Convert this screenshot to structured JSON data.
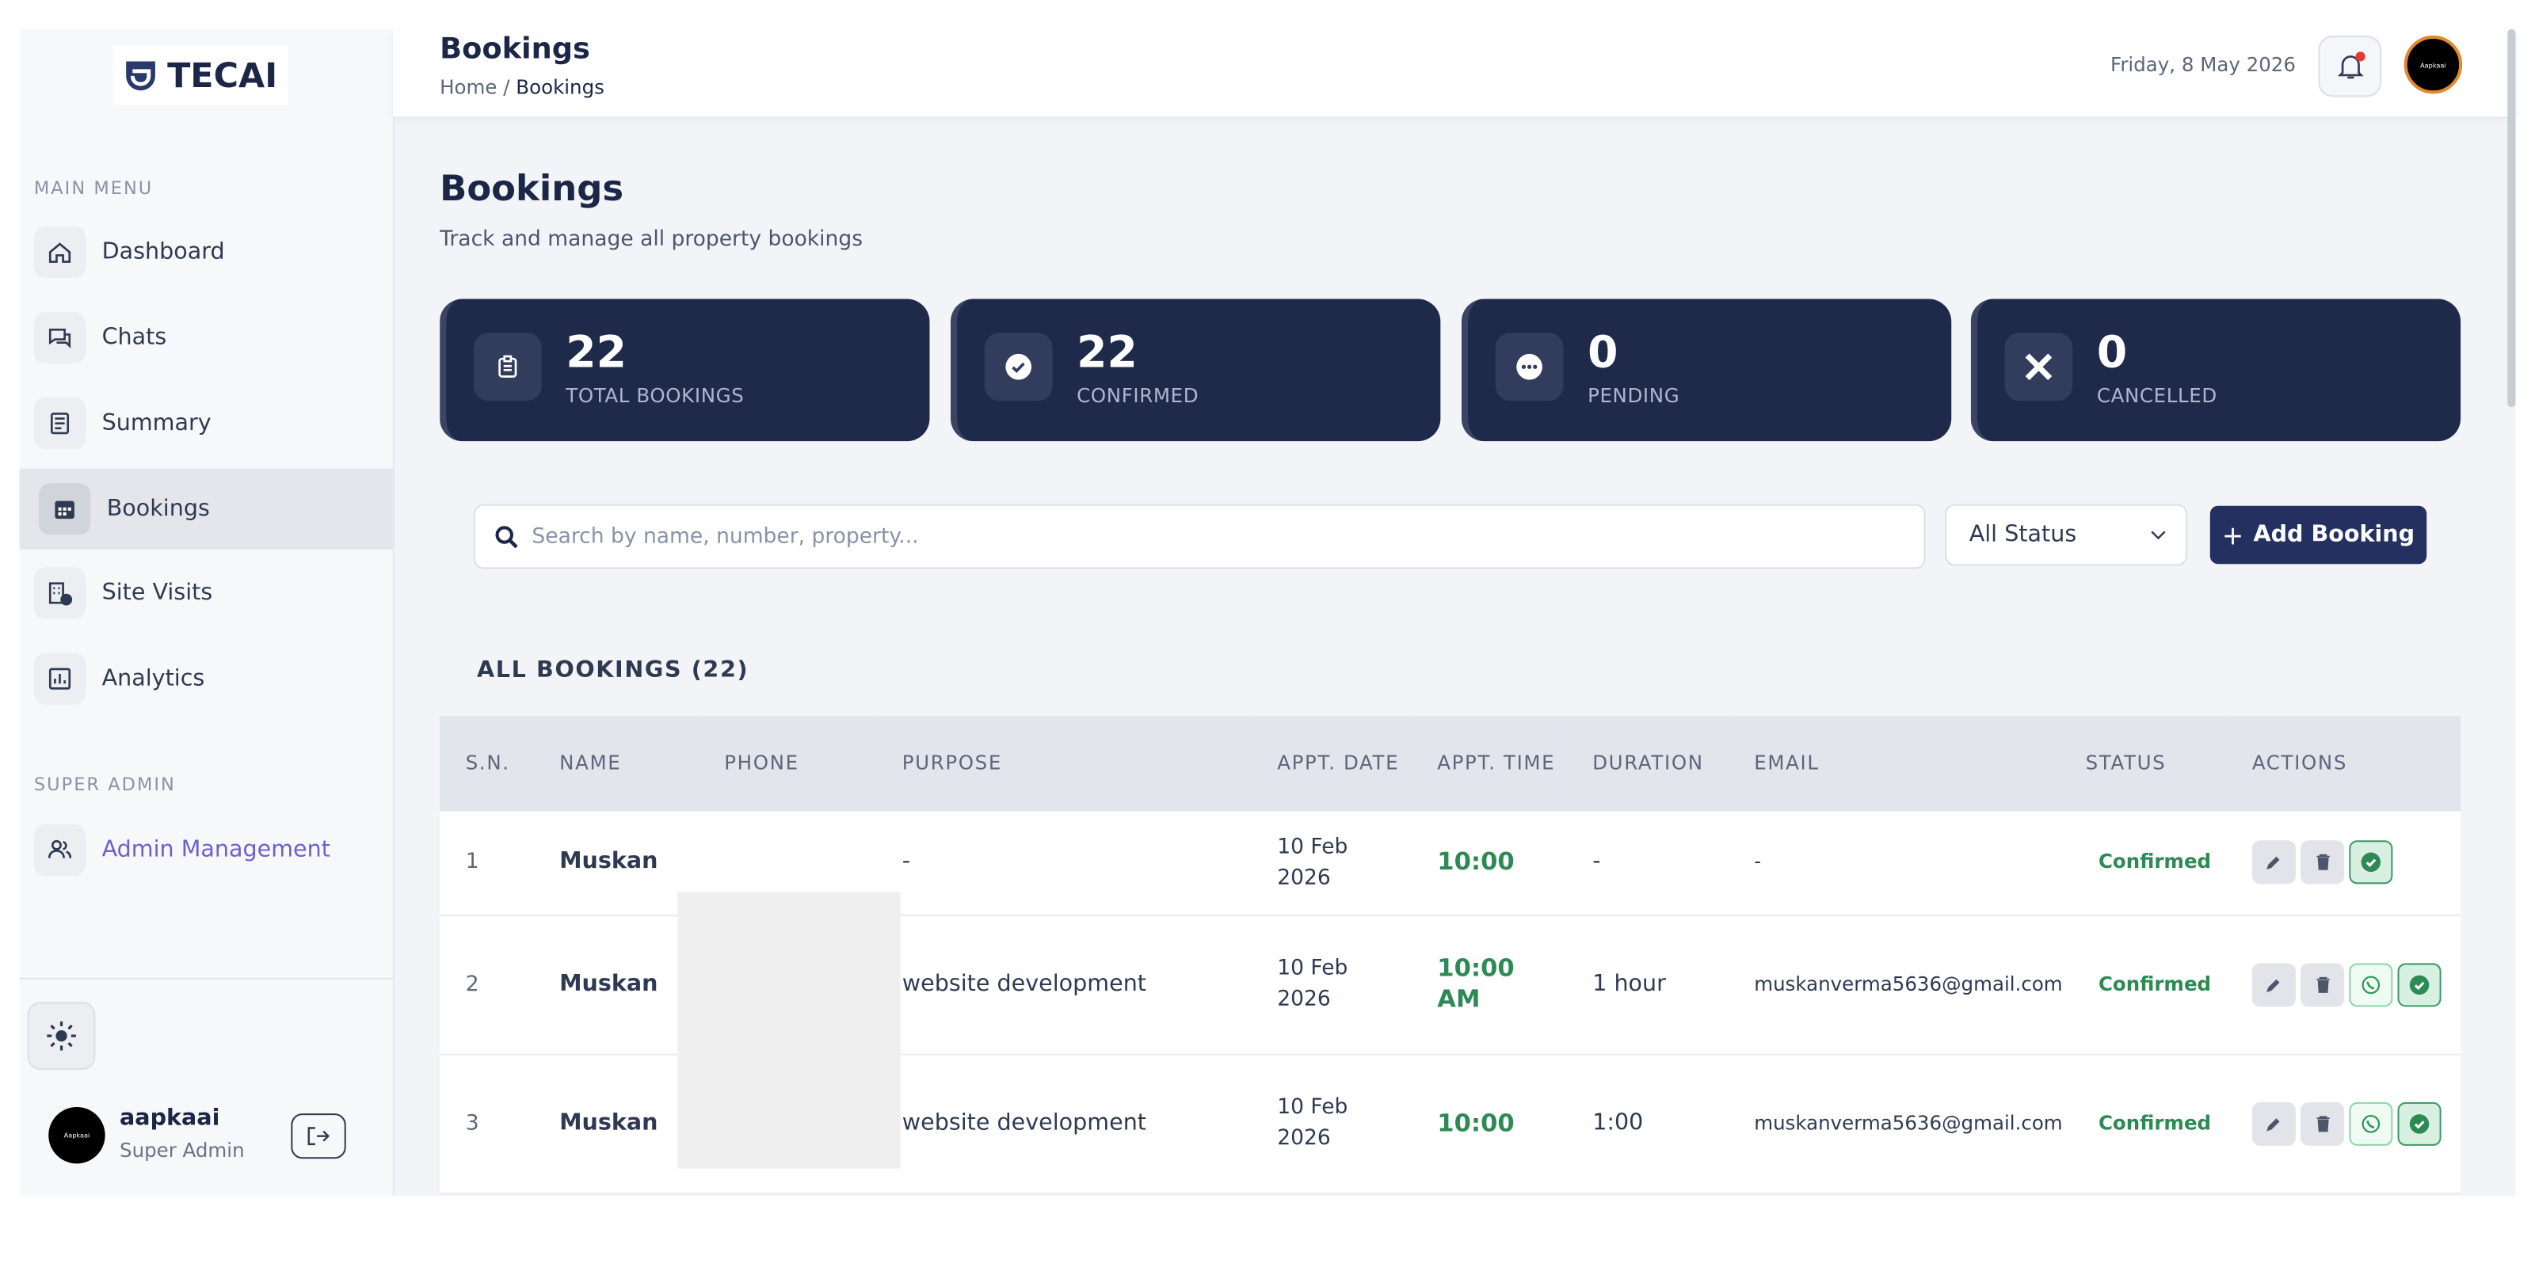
{
  "brand": "TECAI",
  "header": {
    "title": "Bookings",
    "breadcrumb": {
      "home": "Home",
      "separator": "/",
      "current": "Bookings"
    },
    "date": "Friday, 8 May 2026",
    "avatar": "Aapkaai"
  },
  "sidebar": {
    "main_menu_label": "MAIN MENU",
    "items": [
      "Dashboard",
      "Chats",
      "Summary",
      "Bookings",
      "Site Visits",
      "Analytics"
    ],
    "active": 3,
    "super_admin_label": "SUPER ADMIN",
    "admin_item": "Admin Management",
    "user": {
      "avatar": "Aapkaai",
      "name": "aapkaai",
      "role": "Super Admin"
    }
  },
  "page": {
    "title": "Bookings",
    "subtitle": "Track and manage all property bookings"
  },
  "stats": [
    {
      "value": 22,
      "label": "TOTAL BOOKINGS"
    },
    {
      "value": 22,
      "label": "CONFIRMED"
    },
    {
      "value": 0,
      "label": "PENDING"
    },
    {
      "value": 0,
      "label": "CANCELLED"
    }
  ],
  "toolbar": {
    "search_placeholder": "Search by name, number, property...",
    "status_filter": "All Status",
    "add_button": "Add Booking"
  },
  "table": {
    "title": "ALL BOOKINGS (22)",
    "columns": [
      "S.N.",
      "NAME",
      "PHONE",
      "PURPOSE",
      "APPT. DATE",
      "APPT. TIME",
      "DURATION",
      "EMAIL",
      "STATUS",
      "ACTIONS"
    ],
    "rows": [
      {
        "sn": 1,
        "name": "Muskan",
        "purpose": "-",
        "date": "10 Feb 2026",
        "time": "10:00",
        "duration": "-",
        "email": "-",
        "status": "Confirmed",
        "whatsapp": false
      },
      {
        "sn": 2,
        "name": "Muskan",
        "purpose": "website development",
        "date": "10 Feb 2026",
        "time": "10:00 AM",
        "duration": "1 hour",
        "email": "muskanverma5636@gmail.com",
        "status": "Confirmed",
        "whatsapp": true
      },
      {
        "sn": 3,
        "name": "Muskan",
        "purpose": "website development",
        "date": "10 Feb 2026",
        "time": "10:00",
        "duration": "1:00",
        "email": "muskanverma5636@gmail.com",
        "status": "Confirmed",
        "whatsapp": true
      }
    ]
  }
}
